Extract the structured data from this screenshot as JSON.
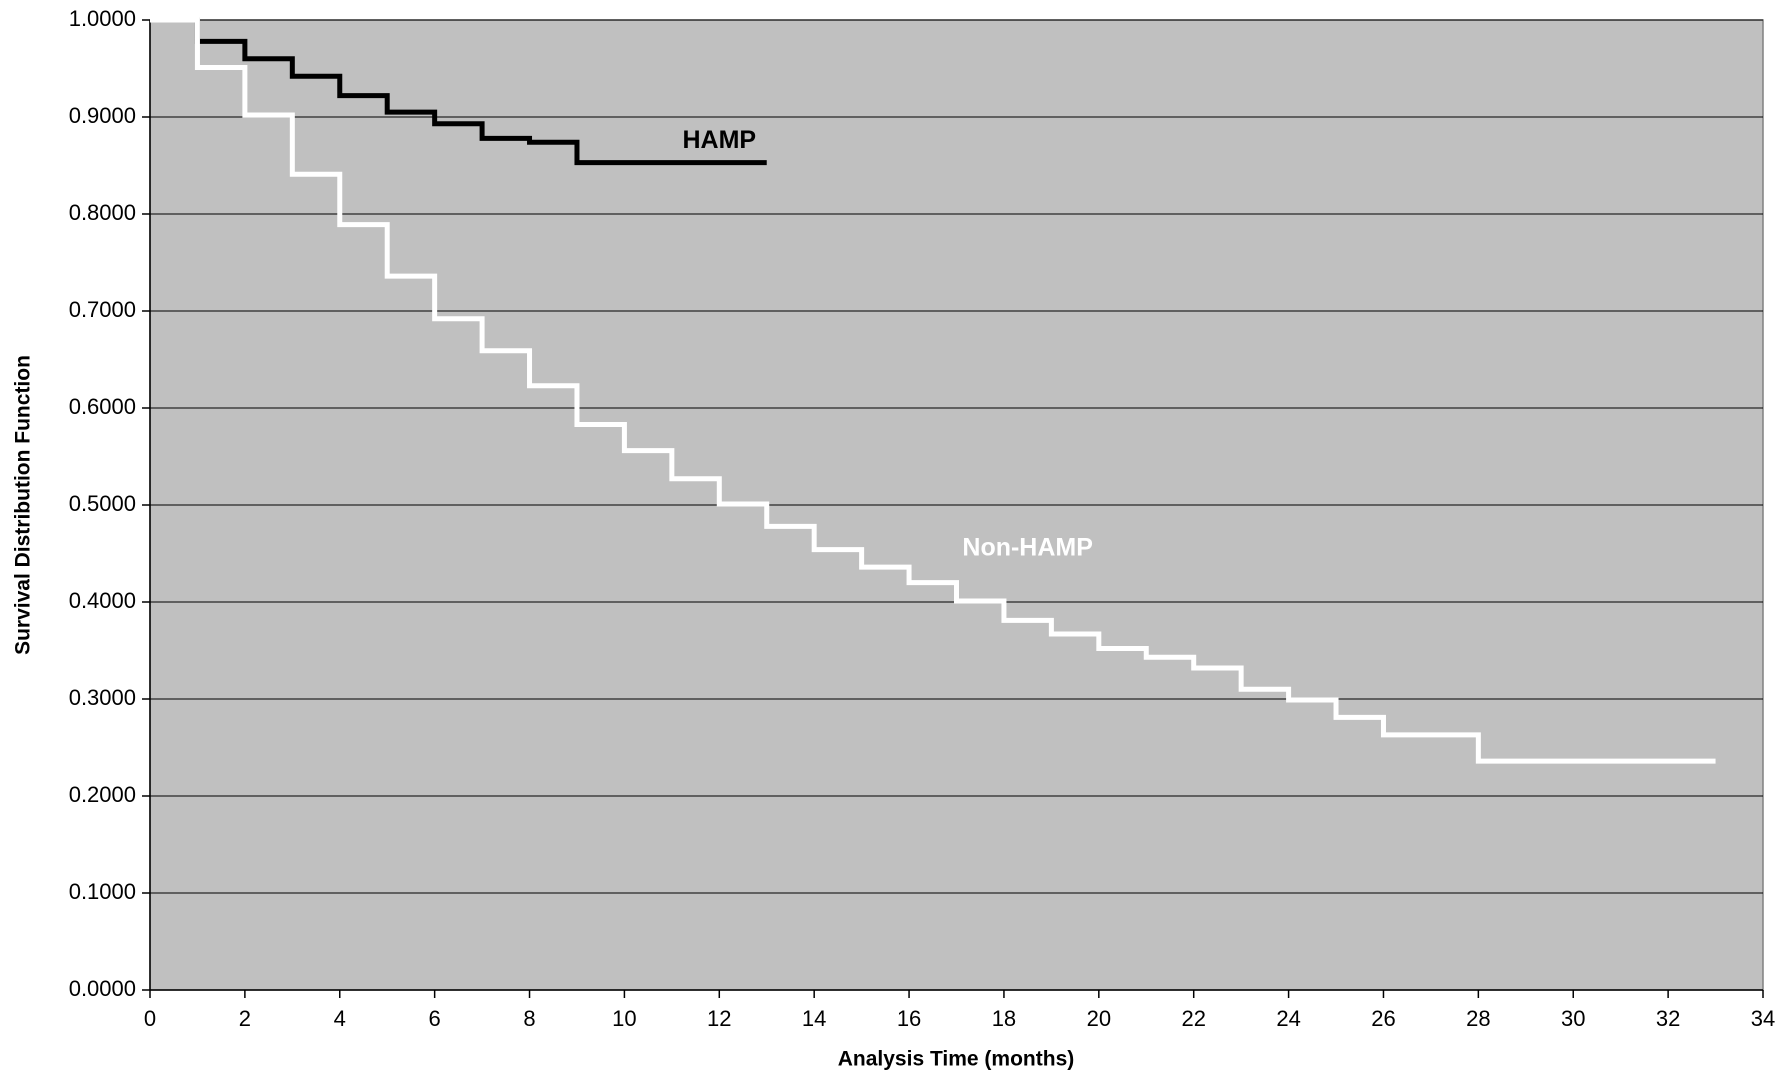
{
  "chart_data": {
    "type": "line",
    "step": "post",
    "x_label": "Analysis Time (months)",
    "y_label": "Survival Distribution Function",
    "background": "#c0c0c0",
    "grid": true,
    "xlim": [
      0,
      34
    ],
    "xticks": [
      0,
      2,
      4,
      6,
      8,
      10,
      12,
      14,
      16,
      18,
      20,
      22,
      24,
      26,
      28,
      30,
      32,
      34
    ],
    "ylim": [
      0,
      1
    ],
    "yticks": [
      {
        "value": 0,
        "label": "0.0000"
      },
      {
        "value": 0.1,
        "label": "0.1000"
      },
      {
        "value": 0.2,
        "label": "0.2000"
      },
      {
        "value": 0.3,
        "label": "0.3000"
      },
      {
        "value": 0.4,
        "label": "0.4000"
      },
      {
        "value": 0.5,
        "label": "0.5000"
      },
      {
        "value": 0.6,
        "label": "0.6000"
      },
      {
        "value": 0.7,
        "label": "0.7000"
      },
      {
        "value": 0.8,
        "label": "0.8000"
      },
      {
        "value": 0.9,
        "label": "0.9000"
      },
      {
        "value": 1,
        "label": "1.0000"
      }
    ],
    "series": [
      {
        "name": "HAMP",
        "color": "#000000",
        "x": [
          0,
          1,
          2,
          3,
          4,
          5,
          6,
          7,
          8,
          9,
          13
        ],
        "values": [
          1.0,
          0.978,
          0.96,
          0.942,
          0.922,
          0.905,
          0.893,
          0.878,
          0.874,
          0.853,
          0.853
        ]
      },
      {
        "name": "Non-HAMP",
        "color": "#ffffff",
        "x": [
          0,
          1,
          2,
          3,
          4,
          5,
          6,
          7,
          8,
          9,
          10,
          11,
          12,
          13,
          14,
          15,
          16,
          17,
          18,
          19,
          20,
          21,
          22,
          23,
          24,
          25,
          26,
          28,
          33
        ],
        "values": [
          1.0,
          0.951,
          0.902,
          0.841,
          0.789,
          0.736,
          0.692,
          0.659,
          0.623,
          0.583,
          0.556,
          0.527,
          0.501,
          0.478,
          0.454,
          0.436,
          0.42,
          0.401,
          0.381,
          0.367,
          0.352,
          0.343,
          0.332,
          0.31,
          0.299,
          0.281,
          0.263,
          0.236,
          0.236
        ]
      }
    ]
  }
}
